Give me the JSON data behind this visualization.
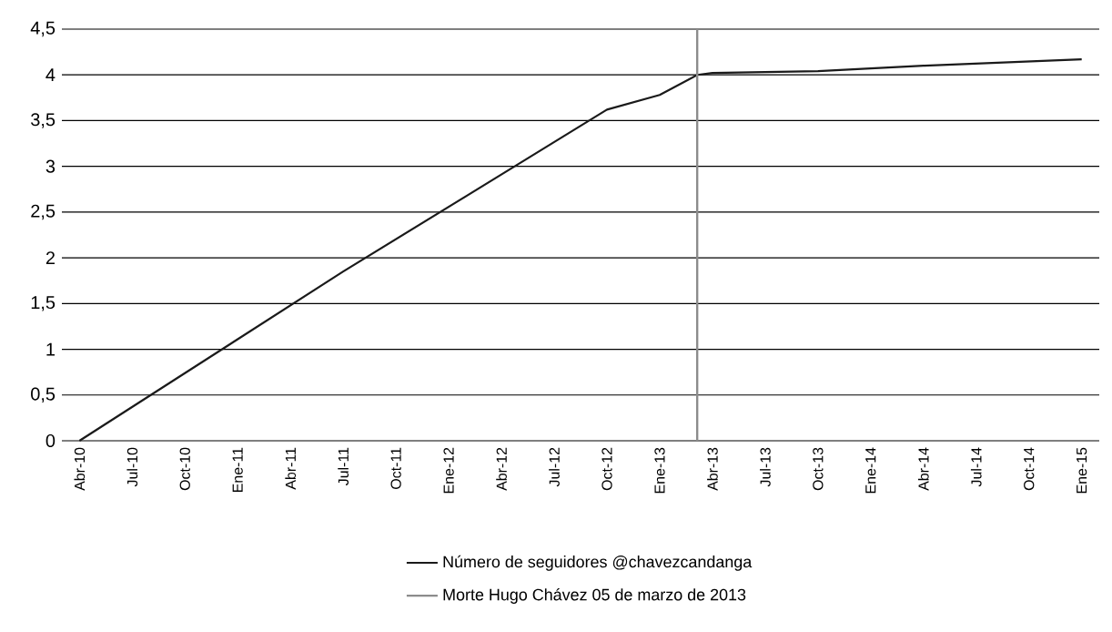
{
  "chart_data": {
    "type": "line",
    "x": [
      "2010-04",
      "2011-07",
      "2012-10",
      "2013-01",
      "2013-03-05",
      "2013-04",
      "2013-10",
      "2014-04",
      "2015-01"
    ],
    "series": [
      {
        "name": "Número de seguidores @chavezcandanga",
        "color": "#1a1a1a",
        "values": [
          0,
          1.85,
          3.62,
          3.78,
          4.0,
          4.02,
          4.04,
          4.1,
          4.17
        ]
      }
    ],
    "xlim": [
      "2010-03",
      "2015-02"
    ],
    "xticks": [
      {
        "value": "2010-04",
        "label": "Abr-10"
      },
      {
        "value": "2010-07",
        "label": "Jul-10"
      },
      {
        "value": "2010-10",
        "label": "Oct-10"
      },
      {
        "value": "2011-01",
        "label": "Ene-11"
      },
      {
        "value": "2011-04",
        "label": "Abr-11"
      },
      {
        "value": "2011-07",
        "label": "Jul-11"
      },
      {
        "value": "2011-10",
        "label": "Oct-11"
      },
      {
        "value": "2012-01",
        "label": "Ene-12"
      },
      {
        "value": "2012-04",
        "label": "Abr-12"
      },
      {
        "value": "2012-07",
        "label": "Jul-12"
      },
      {
        "value": "2012-10",
        "label": "Oct-12"
      },
      {
        "value": "2013-01",
        "label": "Ene-13"
      },
      {
        "value": "2013-04",
        "label": "Abr-13"
      },
      {
        "value": "2013-07",
        "label": "Jul-13"
      },
      {
        "value": "2013-10",
        "label": "Oct-13"
      },
      {
        "value": "2014-01",
        "label": "Ene-14"
      },
      {
        "value": "2014-04",
        "label": "Abr-14"
      },
      {
        "value": "2014-07",
        "label": "Jul-14"
      },
      {
        "value": "2014-10",
        "label": "Oct-14"
      },
      {
        "value": "2015-01",
        "label": "Ene-15"
      }
    ],
    "ylim": [
      0,
      4.5
    ],
    "yticks": [
      {
        "value": 0,
        "label": "0"
      },
      {
        "value": 0.5,
        "label": "0,5"
      },
      {
        "value": 1,
        "label": "1"
      },
      {
        "value": 1.5,
        "label": "1,5"
      },
      {
        "value": 2,
        "label": "2"
      },
      {
        "value": 2.5,
        "label": "2,5"
      },
      {
        "value": 3,
        "label": "3"
      },
      {
        "value": 3.5,
        "label": "3,5"
      },
      {
        "value": 4,
        "label": "4"
      },
      {
        "value": 4.5,
        "label": "4,5"
      }
    ],
    "grid": "y",
    "legend": "bottom",
    "ref_lines": [
      {
        "axis": "x",
        "value": "2013-03-05",
        "label": "Morte Hugo Chávez 05 de marzo de 2013",
        "color": "#8c8c8c"
      }
    ]
  }
}
